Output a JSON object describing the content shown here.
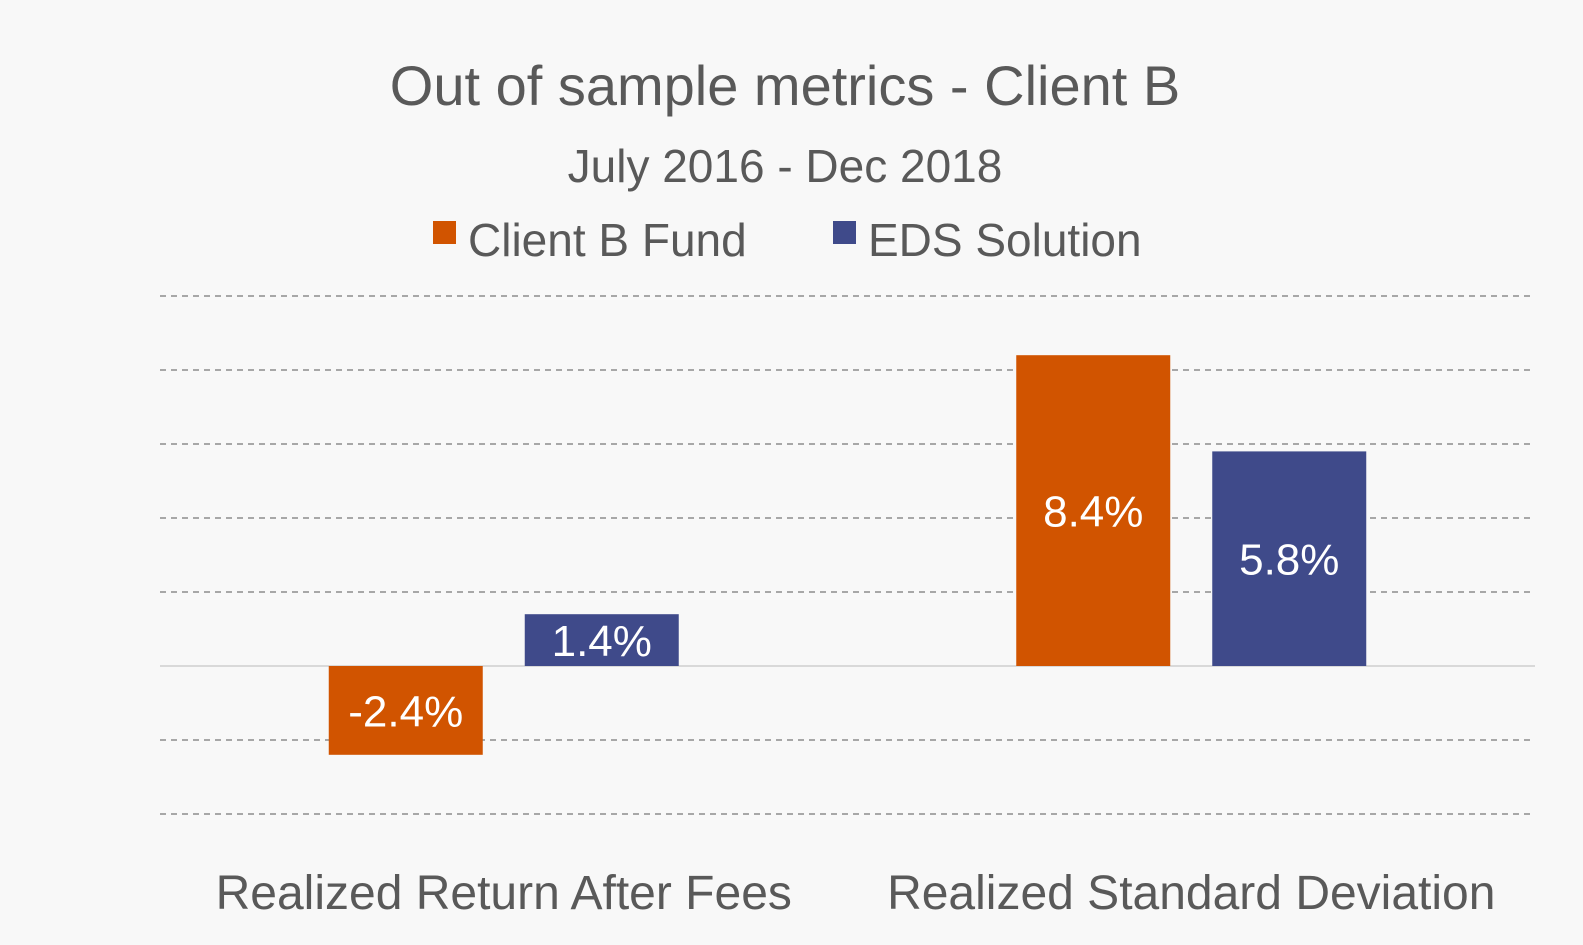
{
  "chart_data": {
    "type": "bar",
    "title": "Out of sample metrics - Client B",
    "subtitle": "July 2016 - Dec 2018",
    "categories": [
      "Realized Return After Fees",
      "Realized Standard Deviation"
    ],
    "series": [
      {
        "name": "Client B Fund",
        "color": "#d15400",
        "values": [
          -2.4,
          8.4
        ],
        "labels": [
          "-2.4%",
          "8.4%"
        ]
      },
      {
        "name": "EDS Solution",
        "color": "#3f4a8a",
        "values": [
          1.4,
          5.8
        ],
        "labels": [
          "1.4%",
          "5.8%"
        ]
      }
    ],
    "ylim": [
      -4,
      10
    ],
    "gridline_step": 2,
    "grid": true,
    "legend_position": "top-center",
    "xlabel": "",
    "ylabel": ""
  }
}
